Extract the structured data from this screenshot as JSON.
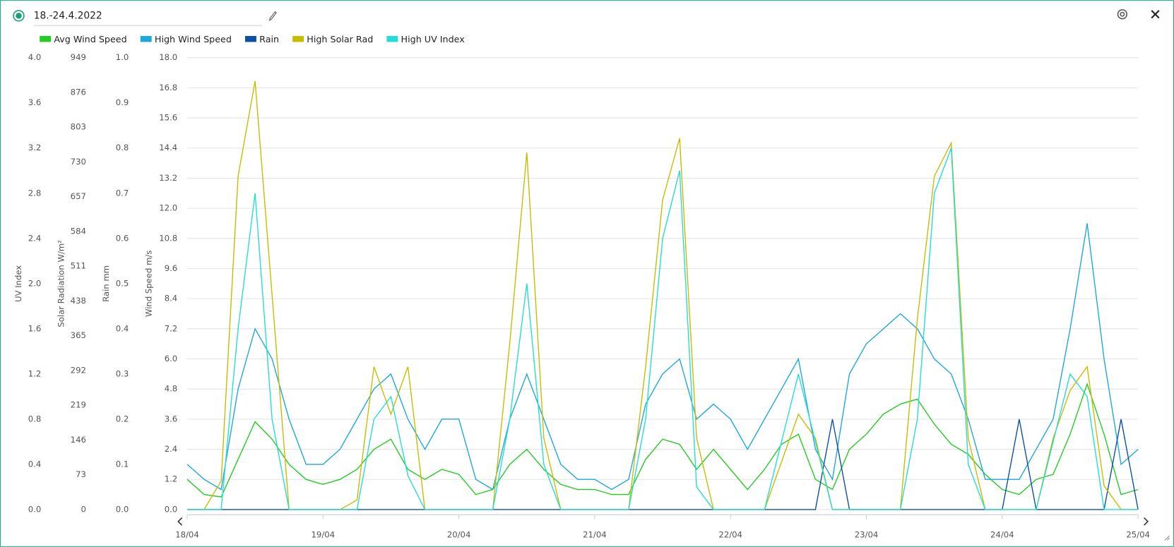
{
  "header": {
    "title": "18.-24.4.2022"
  },
  "chart_data": {
    "type": "line",
    "x": [
      0,
      0.125,
      0.25,
      0.375,
      0.5,
      0.625,
      0.75,
      0.875,
      1,
      1.125,
      1.25,
      1.375,
      1.5,
      1.625,
      1.75,
      1.875,
      2,
      2.125,
      2.25,
      2.375,
      2.5,
      2.625,
      2.75,
      2.875,
      3,
      3.125,
      3.25,
      3.375,
      3.5,
      3.625,
      3.75,
      3.875,
      4,
      4.125,
      4.25,
      4.375,
      4.5,
      4.625,
      4.75,
      4.875,
      5,
      5.125,
      5.25,
      5.375,
      5.5,
      5.625,
      5.75,
      5.875,
      6,
      6.125,
      6.25,
      6.375,
      6.5,
      6.625,
      6.75,
      6.875,
      7
    ],
    "xlim": [
      0,
      7
    ],
    "xticks": [
      {
        "value": 0,
        "label": "18/04"
      },
      {
        "value": 1,
        "label": "19/04"
      },
      {
        "value": 2,
        "label": "20/04"
      },
      {
        "value": 3,
        "label": "21/04"
      },
      {
        "value": 4,
        "label": "22/04"
      },
      {
        "value": 5,
        "label": "23/04"
      },
      {
        "value": 6,
        "label": "24/04"
      },
      {
        "value": 7,
        "label": "25/04"
      }
    ],
    "ylabel": "Wind Speed m/s",
    "ylim": [
      0,
      18
    ],
    "yticks": [
      {
        "value": 0,
        "label": "0.0"
      },
      1.2,
      2.4,
      3.6,
      4.8,
      {
        "value": 6,
        "label": "6.0"
      },
      7.2,
      8.4,
      9.6,
      10.8,
      {
        "value": 12,
        "label": "12.0"
      },
      13.2,
      14.4,
      15.6,
      16.8,
      {
        "value": 18,
        "label": "18.0"
      }
    ],
    "y2label": "Rain mm",
    "y2lim": [
      0,
      1
    ],
    "y2ticks": [
      {
        "value": 0,
        "label": "0.0"
      },
      0.1,
      0.2,
      0.3,
      0.4,
      0.5,
      0.6,
      0.7,
      0.8,
      0.9,
      {
        "value": 1,
        "label": "1.0"
      }
    ],
    "y3label": "Solar Radiation W/m²",
    "y3lim": [
      0,
      949
    ],
    "y3ticks": [
      0,
      73,
      146,
      219,
      292,
      365,
      438,
      511,
      584,
      657,
      730,
      803,
      876,
      949
    ],
    "y4label": "UV Index",
    "y4lim": [
      0,
      4
    ],
    "y4ticks": [
      {
        "value": 0,
        "label": "0.0"
      },
      0.4,
      0.8,
      1.2,
      1.6,
      {
        "value": 2,
        "label": "2.0"
      },
      2.4,
      2.8,
      3.2,
      3.6,
      {
        "value": 4,
        "label": "4.0"
      }
    ],
    "grid": true,
    "series": [
      {
        "name": "Avg Wind Speed",
        "color": "#22cc22",
        "axis": "y",
        "values": [
          1.2,
          0.6,
          0.5,
          2.0,
          3.5,
          2.8,
          1.8,
          1.2,
          1.0,
          1.2,
          1.6,
          2.4,
          2.8,
          1.6,
          1.2,
          1.6,
          1.4,
          0.6,
          0.8,
          1.8,
          2.4,
          1.6,
          1.0,
          0.8,
          0.8,
          0.6,
          0.6,
          2.0,
          2.8,
          2.6,
          1.6,
          2.4,
          1.6,
          0.8,
          1.6,
          2.6,
          3.0,
          1.2,
          0.8,
          2.4,
          3.0,
          3.8,
          4.2,
          4.4,
          3.4,
          2.6,
          2.2,
          1.4,
          0.8,
          0.6,
          1.2,
          1.4,
          3.0,
          5.0,
          3.0,
          0.6,
          0.8
        ]
      },
      {
        "name": "High Wind Speed",
        "color": "#1ea7dc",
        "axis": "y",
        "values": [
          1.8,
          1.2,
          0.8,
          4.8,
          7.2,
          6.0,
          3.6,
          1.8,
          1.8,
          2.4,
          3.6,
          4.8,
          5.4,
          3.6,
          2.4,
          3.6,
          3.6,
          1.2,
          0.8,
          3.6,
          5.4,
          3.6,
          1.8,
          1.2,
          1.2,
          0.8,
          1.2,
          4.2,
          5.4,
          6.0,
          3.6,
          4.2,
          3.6,
          2.4,
          3.6,
          4.8,
          6.0,
          2.4,
          1.2,
          5.4,
          6.6,
          7.2,
          7.8,
          7.2,
          6.0,
          5.4,
          3.6,
          1.2,
          1.2,
          1.2,
          2.4,
          3.6,
          7.2,
          11.4,
          6.0,
          1.8,
          2.4
        ]
      },
      {
        "name": "Rain",
        "color": "#0a4fa8",
        "axis": "y2",
        "values": [
          0,
          0,
          0,
          0,
          0,
          0,
          0,
          0,
          0,
          0,
          0,
          0,
          0,
          0,
          0,
          0,
          0,
          0,
          0,
          0,
          0,
          0,
          0,
          0,
          0,
          0,
          0,
          0,
          0,
          0,
          0,
          0,
          0,
          0,
          0,
          0,
          0,
          0,
          0.2,
          0,
          0,
          0,
          0,
          0,
          0,
          0,
          0,
          0,
          0,
          0.2,
          0,
          0,
          0,
          0,
          0,
          0.2,
          0
        ]
      },
      {
        "name": "High Solar Rad",
        "color": "#c8bc00",
        "axis": "y3",
        "values": [
          0,
          0,
          60,
          700,
          900,
          450,
          0,
          0,
          0,
          0,
          20,
          300,
          200,
          300,
          0,
          0,
          0,
          0,
          0,
          350,
          750,
          150,
          0,
          0,
          0,
          0,
          0,
          300,
          650,
          780,
          150,
          0,
          0,
          0,
          0,
          100,
          200,
          150,
          0,
          0,
          0,
          0,
          0,
          400,
          700,
          770,
          150,
          0,
          0,
          0,
          0,
          150,
          250,
          300,
          50,
          0,
          0
        ]
      },
      {
        "name": "High UV Index",
        "color": "#22ddd8",
        "axis": "y4",
        "values": [
          0,
          0,
          0,
          1.6,
          2.8,
          0.8,
          0,
          0,
          0,
          0,
          0,
          0.8,
          1.0,
          0.3,
          0,
          0,
          0,
          0,
          0,
          0.8,
          2.0,
          0.4,
          0,
          0,
          0,
          0,
          0,
          0.8,
          2.4,
          3.0,
          0.2,
          0,
          0,
          0,
          0,
          0.6,
          1.2,
          0.6,
          0,
          0,
          0,
          0,
          0,
          0.8,
          2.8,
          3.2,
          0.4,
          0,
          0,
          0,
          0,
          0.6,
          1.2,
          1.0,
          0,
          0,
          0
        ]
      }
    ]
  }
}
